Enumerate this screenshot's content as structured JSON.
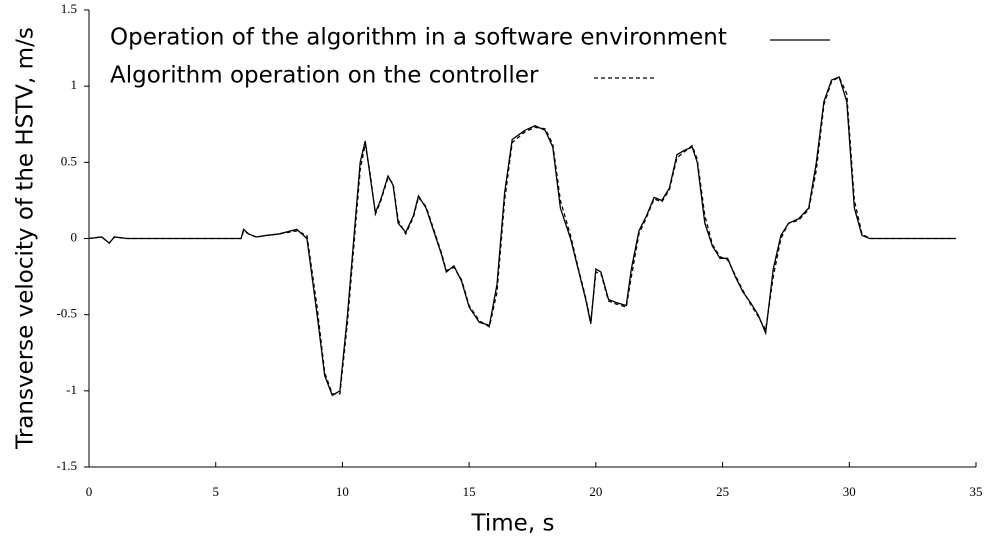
{
  "chart_data": {
    "type": "line",
    "x_label": "Time, s",
    "y_label": "Transverse velocity of the HSTV, m/s",
    "xlim": [
      0,
      35
    ],
    "ylim": [
      -1.5,
      1.5
    ],
    "xticks": [
      0,
      5,
      10,
      15,
      20,
      25,
      30,
      35
    ],
    "yticks": [
      -1.5,
      -1,
      -0.5,
      0,
      0.5,
      1,
      1.5
    ],
    "grid": false,
    "legend": "upper left",
    "x": [
      0,
      0.5,
      0.8,
      1,
      1.5,
      2.5,
      6,
      6.1,
      6.3,
      6.6,
      7,
      7.5,
      8.2,
      8.6,
      9,
      9.3,
      9.6,
      9.9,
      10.2,
      10.5,
      10.7,
      10.9,
      11.1,
      11.3,
      11.5,
      11.8,
      12,
      12.2,
      12.5,
      12.8,
      13,
      13.3,
      13.6,
      13.9,
      14.1,
      14.4,
      14.7,
      15,
      15.4,
      15.8,
      16.1,
      16.4,
      16.7,
      17.2,
      17.6,
      18,
      18.3,
      18.6,
      19,
      19.3,
      19.6,
      19.8,
      20,
      20.2,
      20.5,
      20.8,
      21.2,
      21.4,
      21.7,
      22,
      22.3,
      22.6,
      22.9,
      23.2,
      23.5,
      23.8,
      24,
      24.3,
      24.6,
      24.9,
      25.2,
      25.5,
      25.8,
      26.1,
      26.4,
      26.7,
      27,
      27.3,
      27.6,
      28,
      28.4,
      28.7,
      29,
      29.3,
      29.6,
      29.9,
      30.2,
      30.5,
      30.8,
      34.2
    ],
    "series": [
      {
        "name": "Operation of the algorithm in a software environment",
        "color": "#000000",
        "dash": false,
        "values": [
          0,
          0.01,
          -0.03,
          0.01,
          0,
          0,
          0,
          0.06,
          0.03,
          0.01,
          0.02,
          0.03,
          0.06,
          0,
          -0.5,
          -0.9,
          -1.03,
          -1.0,
          -0.5,
          0.1,
          0.5,
          0.64,
          0.4,
          0.17,
          0.25,
          0.41,
          0.35,
          0.1,
          0.04,
          0.15,
          0.28,
          0.2,
          0.05,
          -0.1,
          -0.22,
          -0.18,
          -0.28,
          -0.45,
          -0.55,
          -0.57,
          -0.3,
          0.3,
          0.65,
          0.71,
          0.74,
          0.71,
          0.6,
          0.2,
          0,
          -0.2,
          -0.4,
          -0.56,
          -0.2,
          -0.22,
          -0.4,
          -0.42,
          -0.44,
          -0.2,
          0.05,
          0.15,
          0.27,
          0.25,
          0.33,
          0.55,
          0.58,
          0.6,
          0.5,
          0.1,
          -0.05,
          -0.13,
          -0.13,
          -0.25,
          -0.35,
          -0.42,
          -0.5,
          -0.62,
          -0.2,
          0.02,
          0.1,
          0.13,
          0.2,
          0.5,
          0.9,
          1.04,
          1.06,
          0.9,
          0.2,
          0.02,
          0,
          0
        ]
      },
      {
        "name": "Algorithm operation on the controller",
        "color": "#000000",
        "dash": true,
        "values": [
          0,
          0.01,
          -0.03,
          0.01,
          0,
          0,
          0,
          0.05,
          0.03,
          0.01,
          0.02,
          0.03,
          0.05,
          0.02,
          -0.45,
          -0.88,
          -1.02,
          -1.02,
          -0.55,
          0.05,
          0.45,
          0.62,
          0.42,
          0.16,
          0.24,
          0.4,
          0.36,
          0.12,
          0.03,
          0.14,
          0.27,
          0.21,
          0.06,
          -0.09,
          -0.21,
          -0.19,
          -0.27,
          -0.44,
          -0.54,
          -0.58,
          -0.35,
          0.25,
          0.63,
          0.7,
          0.73,
          0.72,
          0.62,
          0.25,
          0.02,
          -0.19,
          -0.39,
          -0.55,
          -0.22,
          -0.23,
          -0.41,
          -0.43,
          -0.45,
          -0.25,
          0.03,
          0.14,
          0.26,
          0.24,
          0.32,
          0.53,
          0.57,
          0.61,
          0.52,
          0.15,
          -0.04,
          -0.12,
          -0.14,
          -0.24,
          -0.34,
          -0.43,
          -0.51,
          -0.6,
          -0.25,
          0,
          0.1,
          0.12,
          0.19,
          0.45,
          0.88,
          1.03,
          1.06,
          0.95,
          0.25,
          0.03,
          0,
          0
        ]
      }
    ]
  }
}
